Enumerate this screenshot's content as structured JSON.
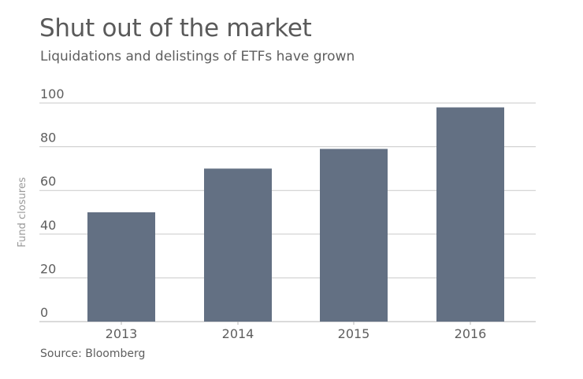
{
  "chart_data": {
    "type": "bar",
    "title": "Shut out of the market",
    "subtitle": "Liquidations and delistings of ETFs have grown",
    "source": "Source: Bloomberg",
    "ylabel": "Fund closures",
    "xlabel": "",
    "categories": [
      "2013",
      "2014",
      "2015",
      "2016"
    ],
    "values": [
      50,
      70,
      79,
      98
    ],
    "ylim": [
      0,
      100
    ],
    "yticks": [
      "0",
      "20",
      "40",
      "60",
      "80",
      "100"
    ],
    "grid": true,
    "bar_color": "#637083",
    "grid_color": "#c9c9c9"
  }
}
